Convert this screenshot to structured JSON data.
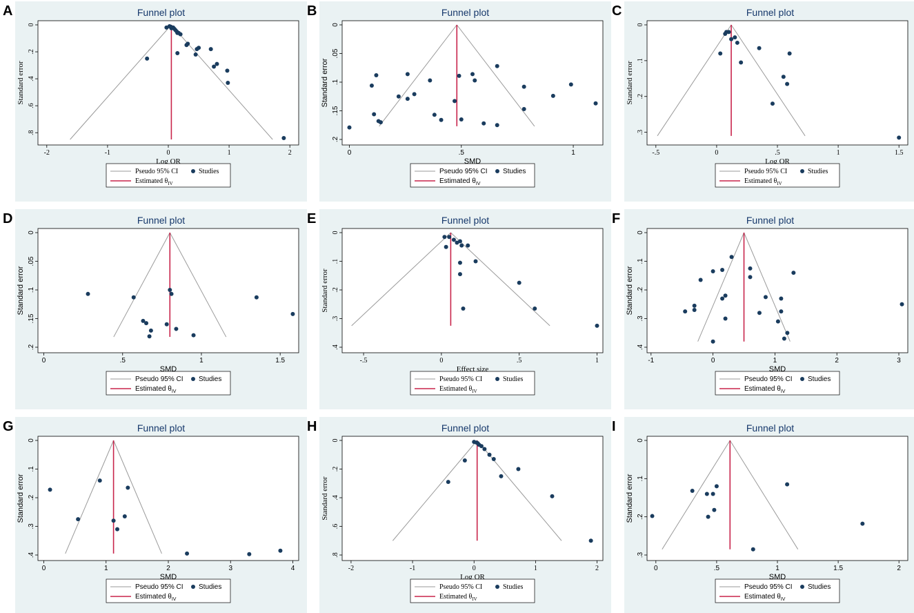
{
  "figure": {
    "background": "#ffffff",
    "panel_background": "#eaf2f3",
    "plot_background": "#ffffff"
  },
  "colors": {
    "points": "#1a3c5e",
    "estimate_line": "#c8234a",
    "ci_lines": "#9a9a9a",
    "title": "#16386b"
  },
  "legend": {
    "ci_label": "Pseudo 95% CI",
    "studies_label": "Studies",
    "estimate_label": "Estimated θ",
    "estimate_subscript": "IV"
  },
  "chart_data": [
    {
      "panel": "A",
      "type": "scatter",
      "title": "Funnel plot",
      "xlabel": "Log OR",
      "ylabel": "Standard error",
      "serif": true,
      "xlim": [
        -2.1,
        2.1
      ],
      "ylim": [
        0,
        0.85
      ],
      "xticks": [
        -2,
        -1,
        0,
        1,
        2
      ],
      "xtick_labels": [
        "-2",
        "-1",
        "0",
        "1",
        "2"
      ],
      "yticks": [
        0,
        0.2,
        0.4,
        0.6,
        0.8
      ],
      "ytick_labels": [
        "0",
        ".2",
        ".4",
        ".6",
        ".8"
      ],
      "estimate": 0.05,
      "funnel_max_se": 0.85,
      "points": [
        [
          0.02,
          0.01
        ],
        [
          0.04,
          0.015
        ],
        [
          0.06,
          0.02
        ],
        [
          0.05,
          0.025
        ],
        [
          0.08,
          0.02
        ],
        [
          0.1,
          0.03
        ],
        [
          0.12,
          0.04
        ],
        [
          0.14,
          0.05
        ],
        [
          0.17,
          0.06
        ],
        [
          0.2,
          0.07
        ],
        [
          0.15,
          0.06
        ],
        [
          -0.03,
          0.02
        ],
        [
          0.32,
          0.14
        ],
        [
          0.3,
          0.15
        ],
        [
          0.47,
          0.18
        ],
        [
          0.5,
          0.17
        ],
        [
          0.7,
          0.18
        ],
        [
          0.15,
          0.21
        ],
        [
          0.45,
          0.22
        ],
        [
          0.75,
          0.31
        ],
        [
          0.8,
          0.29
        ],
        [
          0.97,
          0.34
        ],
        [
          0.98,
          0.43
        ],
        [
          -0.35,
          0.25
        ],
        [
          1.9,
          0.84
        ]
      ]
    },
    {
      "panel": "B",
      "type": "scatter",
      "title": "Funnel plot",
      "xlabel": "SMD",
      "ylabel": "Standard error",
      "serif": false,
      "xlim": [
        -0.02,
        1.12
      ],
      "ylim": [
        0,
        0.2
      ],
      "xticks": [
        0,
        0.5,
        1
      ],
      "xtick_labels": [
        "0",
        ".5",
        "1"
      ],
      "yticks": [
        0,
        0.05,
        0.1,
        0.15,
        0.2
      ],
      "ytick_labels": [
        "0",
        ".05",
        ".1",
        ".15",
        ".2"
      ],
      "estimate": 0.48,
      "funnel_max_se": 0.177,
      "points": [
        [
          0.0,
          0.179
        ],
        [
          0.1,
          0.106
        ],
        [
          0.12,
          0.088
        ],
        [
          0.11,
          0.156
        ],
        [
          0.13,
          0.168
        ],
        [
          0.14,
          0.17
        ],
        [
          0.22,
          0.125
        ],
        [
          0.26,
          0.086
        ],
        [
          0.26,
          0.129
        ],
        [
          0.29,
          0.121
        ],
        [
          0.36,
          0.097
        ],
        [
          0.38,
          0.157
        ],
        [
          0.41,
          0.166
        ],
        [
          0.47,
          0.133
        ],
        [
          0.49,
          0.089
        ],
        [
          0.5,
          0.165
        ],
        [
          0.55,
          0.086
        ],
        [
          0.56,
          0.097
        ],
        [
          0.6,
          0.172
        ],
        [
          0.66,
          0.072
        ],
        [
          0.66,
          0.175
        ],
        [
          0.78,
          0.108
        ],
        [
          0.78,
          0.147
        ],
        [
          0.91,
          0.124
        ],
        [
          0.99,
          0.104
        ],
        [
          1.1,
          0.137
        ]
      ]
    },
    {
      "panel": "C",
      "type": "scatter",
      "title": "Funnel plot",
      "xlabel": "Log OR",
      "ylabel": "Standard error",
      "serif": true,
      "xlim": [
        -0.55,
        1.55
      ],
      "ylim": [
        0,
        0.32
      ],
      "xticks": [
        -0.5,
        0,
        0.5,
        1,
        1.5
      ],
      "xtick_labels": [
        "-.5",
        "0",
        ".5",
        "1",
        "1.5"
      ],
      "yticks": [
        0,
        0.1,
        0.2,
        0.3
      ],
      "ytick_labels": [
        "0",
        ".1",
        ".2",
        ".3"
      ],
      "estimate": 0.12,
      "funnel_max_se": 0.31,
      "points": [
        [
          0.07,
          0.025
        ],
        [
          0.08,
          0.02
        ],
        [
          0.1,
          0.02
        ],
        [
          0.12,
          0.04
        ],
        [
          0.15,
          0.035
        ],
        [
          0.17,
          0.05
        ],
        [
          0.03,
          0.08
        ],
        [
          0.2,
          0.105
        ],
        [
          0.35,
          0.065
        ],
        [
          0.6,
          0.08
        ],
        [
          0.55,
          0.145
        ],
        [
          0.58,
          0.165
        ],
        [
          0.46,
          0.22
        ],
        [
          1.5,
          0.315
        ]
      ]
    },
    {
      "panel": "D",
      "type": "scatter",
      "title": "Funnel plot",
      "xlabel": "SMD",
      "ylabel": "Standard error",
      "serif": false,
      "xlim": [
        -0.02,
        1.6
      ],
      "ylim": [
        0,
        0.2
      ],
      "xticks": [
        0,
        0.5,
        1,
        1.5
      ],
      "xtick_labels": [
        "0",
        ".5",
        "1",
        "1.5"
      ],
      "yticks": [
        0,
        0.05,
        0.1,
        0.15,
        0.2
      ],
      "ytick_labels": [
        "0",
        ".05",
        ".1",
        ".15",
        ".2"
      ],
      "estimate": 0.8,
      "funnel_max_se": 0.182,
      "points": [
        [
          0.28,
          0.107
        ],
        [
          0.57,
          0.113
        ],
        [
          0.63,
          0.154
        ],
        [
          0.65,
          0.158
        ],
        [
          0.67,
          0.181
        ],
        [
          0.68,
          0.171
        ],
        [
          0.78,
          0.16
        ],
        [
          0.8,
          0.1
        ],
        [
          0.81,
          0.107
        ],
        [
          0.84,
          0.168
        ],
        [
          0.95,
          0.179
        ],
        [
          1.35,
          0.113
        ],
        [
          1.58,
          0.142
        ]
      ]
    },
    {
      "panel": "E",
      "type": "scatter",
      "title": "Funnel plot",
      "xlabel": "Effect size",
      "ylabel": "Standard error",
      "serif": true,
      "xlim": [
        -0.62,
        1.02
      ],
      "ylim": [
        0,
        0.4
      ],
      "xticks": [
        -0.5,
        0,
        0.5,
        1
      ],
      "xtick_labels": [
        "-.5",
        "0",
        ".5",
        "1"
      ],
      "yticks": [
        0,
        0.1,
        0.2,
        0.3,
        0.4
      ],
      "ytick_labels": [
        "0",
        ".1",
        ".2",
        ".3",
        ".4"
      ],
      "estimate": 0.06,
      "funnel_max_se": 0.325,
      "points": [
        [
          0.02,
          0.015
        ],
        [
          0.05,
          0.015
        ],
        [
          0.08,
          0.025
        ],
        [
          0.1,
          0.035
        ],
        [
          0.12,
          0.03
        ],
        [
          0.13,
          0.045
        ],
        [
          0.17,
          0.045
        ],
        [
          0.03,
          0.05
        ],
        [
          0.12,
          0.105
        ],
        [
          0.22,
          0.1
        ],
        [
          0.12,
          0.145
        ],
        [
          0.5,
          0.175
        ],
        [
          0.6,
          0.265
        ],
        [
          0.14,
          0.265
        ],
        [
          1.0,
          0.325
        ]
      ]
    },
    {
      "panel": "F",
      "type": "scatter",
      "title": "Funnel plot",
      "xlabel": "SMD",
      "ylabel": "Standard error",
      "serif": false,
      "xlim": [
        -1.02,
        3.1
      ],
      "ylim": [
        0,
        0.4
      ],
      "xticks": [
        -1,
        0,
        1,
        2,
        3
      ],
      "xtick_labels": [
        "-1",
        "0",
        "1",
        "2",
        "3"
      ],
      "yticks": [
        0,
        0.1,
        0.2,
        0.3,
        0.4
      ],
      "ytick_labels": [
        "0",
        ".1",
        ".2",
        ".3",
        ".4"
      ],
      "estimate": 0.5,
      "funnel_max_se": 0.38,
      "points": [
        [
          -0.45,
          0.275
        ],
        [
          -0.3,
          0.255
        ],
        [
          -0.3,
          0.27
        ],
        [
          -0.2,
          0.165
        ],
        [
          0.0,
          0.135
        ],
        [
          0.15,
          0.13
        ],
        [
          0.3,
          0.085
        ],
        [
          0.15,
          0.23
        ],
        [
          0.2,
          0.22
        ],
        [
          0.2,
          0.3
        ],
        [
          0.0,
          0.38
        ],
        [
          0.6,
          0.125
        ],
        [
          0.6,
          0.155
        ],
        [
          0.75,
          0.28
        ],
        [
          0.85,
          0.225
        ],
        [
          1.05,
          0.31
        ],
        [
          1.1,
          0.23
        ],
        [
          1.1,
          0.275
        ],
        [
          1.15,
          0.37
        ],
        [
          1.2,
          0.35
        ],
        [
          1.3,
          0.14
        ],
        [
          3.05,
          0.25
        ]
      ]
    },
    {
      "panel": "G",
      "type": "scatter",
      "title": "Funnel plot",
      "xlabel": "SMD",
      "ylabel": "Standard error",
      "serif": false,
      "xlim": [
        -0.05,
        4.05
      ],
      "ylim": [
        0,
        0.4
      ],
      "xticks": [
        0,
        1,
        2,
        3,
        4
      ],
      "xtick_labels": [
        "0",
        "1",
        "2",
        "3",
        "4"
      ],
      "yticks": [
        0,
        0.1,
        0.2,
        0.3,
        0.4
      ],
      "ytick_labels": [
        "0",
        ".1",
        ".2",
        ".3",
        ".4"
      ],
      "estimate": 1.12,
      "funnel_max_se": 0.395,
      "points": [
        [
          0.1,
          0.172
        ],
        [
          0.55,
          0.275
        ],
        [
          0.9,
          0.14
        ],
        [
          1.12,
          0.28
        ],
        [
          1.18,
          0.31
        ],
        [
          1.3,
          0.265
        ],
        [
          1.35,
          0.165
        ],
        [
          2.3,
          0.395
        ],
        [
          3.3,
          0.397
        ],
        [
          3.8,
          0.385
        ]
      ]
    },
    {
      "panel": "H",
      "type": "scatter",
      "title": "Funnel plot",
      "xlabel": "Log OR",
      "ylabel": "Standard error",
      "serif": true,
      "xlim": [
        -2.1,
        2.05
      ],
      "ylim": [
        0,
        0.8
      ],
      "xticks": [
        -2,
        -1,
        0,
        1,
        2
      ],
      "xtick_labels": [
        "-2",
        "-1",
        "0",
        "1",
        "2"
      ],
      "yticks": [
        0,
        0.2,
        0.4,
        0.6,
        0.8
      ],
      "ytick_labels": [
        "0",
        ".2",
        ".4",
        ".6",
        ".8"
      ],
      "estimate": 0.05,
      "funnel_max_se": 0.7,
      "points": [
        [
          0.0,
          0.01
        ],
        [
          0.04,
          0.015
        ],
        [
          0.06,
          0.02
        ],
        [
          0.08,
          0.03
        ],
        [
          0.12,
          0.04
        ],
        [
          0.17,
          0.06
        ],
        [
          0.25,
          0.1
        ],
        [
          0.32,
          0.13
        ],
        [
          0.44,
          0.25
        ],
        [
          0.72,
          0.2
        ],
        [
          -0.15,
          0.14
        ],
        [
          -0.42,
          0.29
        ],
        [
          1.27,
          0.39
        ],
        [
          1.9,
          0.7
        ]
      ]
    },
    {
      "panel": "I",
      "type": "scatter",
      "title": "Funnel plot",
      "xlabel": "SMD",
      "ylabel": "Standard error",
      "serif": false,
      "xlim": [
        -0.05,
        2.05
      ],
      "ylim": [
        0,
        0.3
      ],
      "xticks": [
        0,
        0.5,
        1,
        1.5,
        2
      ],
      "xtick_labels": [
        "0",
        ".5",
        "1",
        "1.5",
        "2"
      ],
      "yticks": [
        0,
        0.1,
        0.2,
        0.3
      ],
      "ytick_labels": [
        "0",
        ".1",
        ".2",
        ".3"
      ],
      "estimate": 0.61,
      "funnel_max_se": 0.285,
      "points": [
        [
          -0.03,
          0.198
        ],
        [
          0.3,
          0.132
        ],
        [
          0.42,
          0.14
        ],
        [
          0.43,
          0.2
        ],
        [
          0.47,
          0.14
        ],
        [
          0.48,
          0.182
        ],
        [
          0.5,
          0.12
        ],
        [
          0.8,
          0.285
        ],
        [
          1.08,
          0.115
        ],
        [
          1.7,
          0.218
        ]
      ]
    }
  ]
}
